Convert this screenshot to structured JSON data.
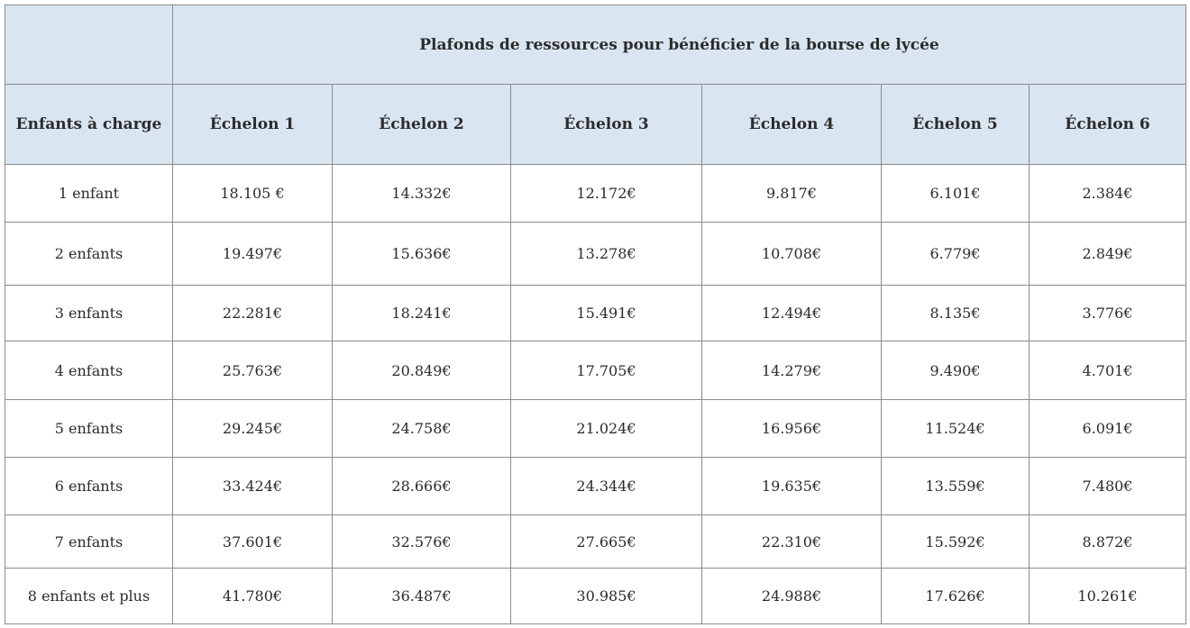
{
  "table": {
    "group_header": "Plafonds de ressources pour bénéficier de la bourse de lycée",
    "first_col_header": "Enfants à charge",
    "columns": [
      "Échelon 1",
      "Échelon 2",
      "Échelon 3",
      "Échelon 4",
      "Échelon 5",
      "Échelon 6"
    ],
    "rows": [
      {
        "label": "1 enfant",
        "values": [
          "18.105 €",
          "14.332€",
          "12.172€",
          "9.817€",
          "6.101€",
          "2.384€"
        ]
      },
      {
        "label": "2 enfants",
        "values": [
          "19.497€",
          "15.636€",
          "13.278€",
          "10.708€",
          "6.779€",
          "2.849€"
        ]
      },
      {
        "label": "3 enfants",
        "values": [
          "22.281€",
          "18.241€",
          "15.491€",
          "12.494€",
          "8.135€",
          "3.776€"
        ]
      },
      {
        "label": "4 enfants",
        "values": [
          "25.763€",
          "20.849€",
          "17.705€",
          "14.279€",
          "9.490€",
          "4.701€"
        ]
      },
      {
        "label": "5 enfants",
        "values": [
          "29.245€",
          "24.758€",
          "21.024€",
          "16.956€",
          "11.524€",
          "6.091€"
        ]
      },
      {
        "label": "6 enfants",
        "values": [
          "33.424€",
          "28.666€",
          "24.344€",
          "19.635€",
          "13.559€",
          "7.480€"
        ]
      },
      {
        "label": "7 enfants",
        "values": [
          "37.601€",
          "32.576€",
          "27.665€",
          "22.310€",
          "15.592€",
          "8.872€"
        ]
      },
      {
        "label": "8 enfants et plus",
        "values": [
          "41.780€",
          "36.487€",
          "30.985€",
          "24.988€",
          "17.626€",
          "10.261€"
        ]
      }
    ]
  }
}
